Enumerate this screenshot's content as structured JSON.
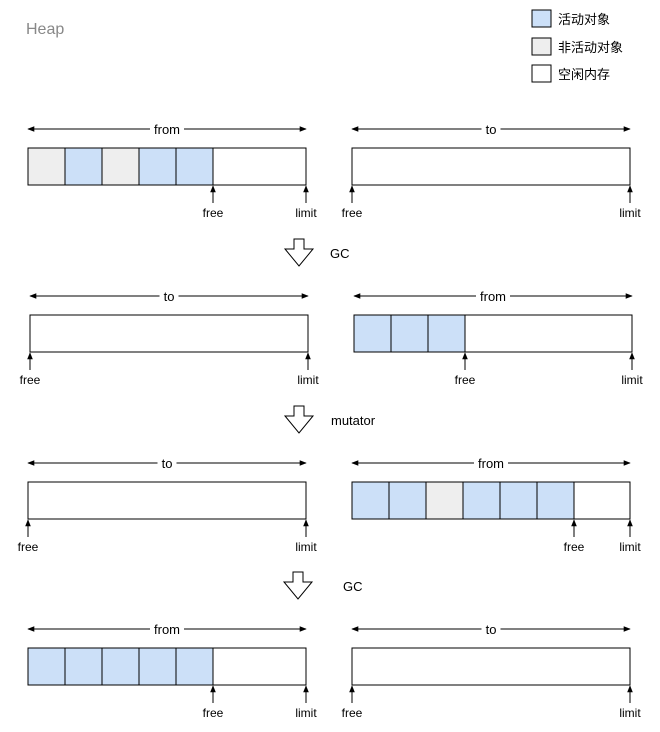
{
  "title": "Heap",
  "legend": [
    {
      "label": "活动对象",
      "color": "#cce0f8",
      "icon": "live-object-swatch"
    },
    {
      "label": "非活动对象",
      "color": "#eeeeee",
      "icon": "dead-object-swatch"
    },
    {
      "label": "空闲内存",
      "color": "#ffffff",
      "icon": "free-memory-swatch"
    }
  ],
  "colors": {
    "live": "#cce0f8",
    "dead": "#eeeeee",
    "free": "#ffffff",
    "stroke": "#000000"
  },
  "transitions": [
    "GC",
    "mutator",
    "GC"
  ],
  "pointer_labels": {
    "free": "free",
    "limit": "limit"
  },
  "stages": [
    {
      "left": {
        "span": "from",
        "cells": [
          "dead",
          "live",
          "dead",
          "live",
          "live"
        ]
      },
      "right": {
        "span": "to",
        "cells": []
      }
    },
    {
      "left": {
        "span": "to",
        "cells": []
      },
      "right": {
        "span": "from",
        "cells": [
          "live",
          "live",
          "live"
        ]
      }
    },
    {
      "left": {
        "span": "to",
        "cells": []
      },
      "right": {
        "span": "from",
        "cells": [
          "live",
          "live",
          "dead",
          "live",
          "live",
          "live"
        ]
      }
    },
    {
      "left": {
        "span": "from",
        "cells": [
          "live",
          "live",
          "live",
          "live",
          "live"
        ]
      },
      "right": {
        "span": "to",
        "cells": []
      }
    }
  ]
}
